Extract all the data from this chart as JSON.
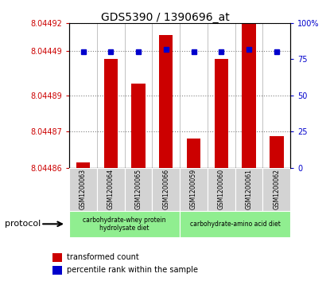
{
  "title": "GDS5390 / 1390696_at",
  "samples": [
    "GSM1200063",
    "GSM1200064",
    "GSM1200065",
    "GSM1200066",
    "GSM1200059",
    "GSM1200060",
    "GSM1200061",
    "GSM1200062"
  ],
  "red_values": [
    8.044862,
    8.044905,
    8.044895,
    8.044915,
    8.044872,
    8.044905,
    8.04492,
    8.044873
  ],
  "blue_values": [
    80,
    80,
    80,
    82,
    80,
    80,
    82,
    80
  ],
  "ylim_left": [
    8.04486,
    8.04492
  ],
  "ylim_right": [
    0,
    100
  ],
  "yticks_left": [
    8.04486,
    8.04487,
    8.04489,
    8.04449,
    8.04492
  ],
  "ytick_labels_left": [
    "8.04486",
    "8.04487",
    "8.04489",
    "8.04449",
    "8.04492"
  ],
  "yticks_right": [
    0,
    25,
    50,
    75,
    100
  ],
  "ytick_labels_right": [
    "0",
    "25",
    "50",
    "75",
    "100%"
  ],
  "bar_color": "#cc0000",
  "dot_color": "#0000cc",
  "bar_width": 0.5,
  "legend_red": "transformed count",
  "legend_blue": "percentile rank within the sample",
  "base_value": 8.04486,
  "group1_label": "carbohydrate-whey protein\nhydrolysate diet",
  "group2_label": "carbohydrate-amino acid diet",
  "group_color": "#90ee90",
  "sample_box_color": "#d3d3d3",
  "protocol_label": "protocol"
}
